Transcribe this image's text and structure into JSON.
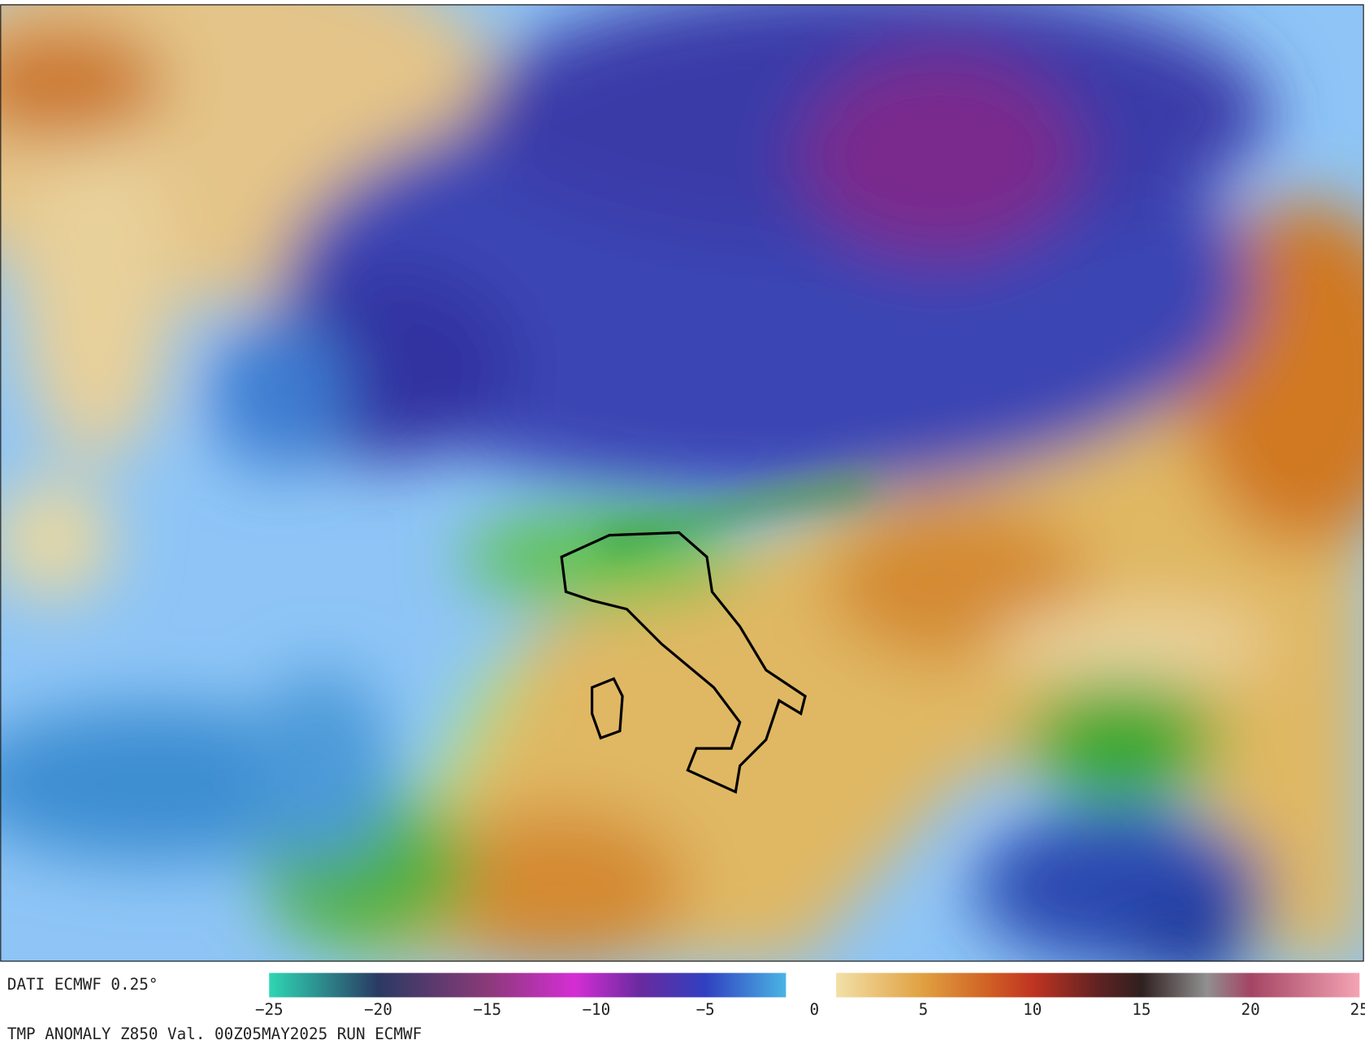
{
  "header": {
    "source": "DATI ECMWF 0.25°"
  },
  "footer": {
    "caption": "TMP ANOMALY Z850 Val. 00Z05MAY2025 RUN ECMWF"
  },
  "colorbar": {
    "xlim": [
      -25,
      25
    ],
    "xticks": [
      {
        "value": -25,
        "label": "−25"
      },
      {
        "value": -20,
        "label": "−20"
      },
      {
        "value": -15,
        "label": "−15"
      },
      {
        "value": -10,
        "label": "−10"
      },
      {
        "value": -5,
        "label": "−5"
      },
      0,
      5,
      10,
      15,
      20,
      25
    ],
    "segments": [
      {
        "stops": [
          {
            "value": -25,
            "color": "#2ed6b4"
          },
          {
            "value": -20,
            "color": "#2a3a62"
          },
          {
            "value": -15,
            "color": "#8a3a78"
          },
          {
            "value": -11,
            "color": "#d42ed4"
          },
          {
            "value": -8,
            "color": "#6a2aa0"
          },
          {
            "value": -5,
            "color": "#3040c0"
          },
          {
            "value": -1.3,
            "color": "#4ab4e4"
          }
        ]
      },
      {
        "stops": [
          {
            "value": 1,
            "color": "#f2e0a8"
          },
          {
            "value": 5,
            "color": "#e0a040"
          },
          {
            "value": 8,
            "color": "#d06024"
          },
          {
            "value": 10,
            "color": "#c03422"
          },
          {
            "value": 13,
            "color": "#602222"
          },
          {
            "value": 15,
            "color": "#302020"
          },
          {
            "value": 18,
            "color": "#909090"
          },
          {
            "value": 20,
            "color": "#a44464"
          },
          {
            "value": 25,
            "color": "#f4a4b4"
          }
        ]
      }
    ]
  }
}
